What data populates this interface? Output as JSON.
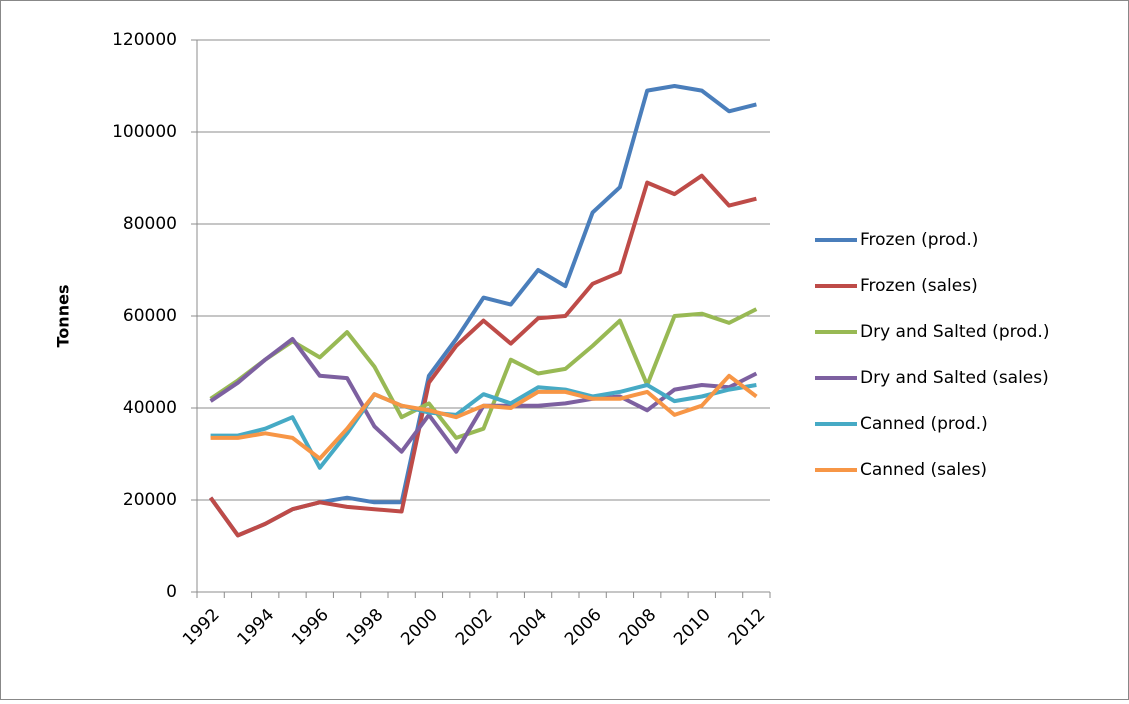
{
  "chart_data": {
    "type": "line",
    "y_label": "Tonnes",
    "categories": [
      "1992",
      null,
      "1994",
      null,
      "1996",
      null,
      "1998",
      null,
      "2000",
      null,
      "2002",
      null,
      "2004",
      null,
      "2006",
      null,
      "2008",
      null,
      "2010",
      null,
      "2012"
    ],
    "series": [
      {
        "name": "Frozen (prod.)",
        "color": "#4a7ebb",
        "values": [
          20500,
          12300,
          14800,
          18000,
          19500,
          20500,
          19500,
          19500,
          47000,
          55000,
          64000,
          62500,
          70000,
          66500,
          82500,
          88000,
          109000,
          110000,
          109000,
          104500,
          106000
        ]
      },
      {
        "name": "Frozen (sales)",
        "color": "#be4b48",
        "values": [
          20500,
          12300,
          14800,
          18000,
          19500,
          18500,
          18000,
          17500,
          45500,
          53500,
          59000,
          54000,
          59500,
          60000,
          67000,
          69500,
          89000,
          86500,
          90500,
          84000,
          85500
        ]
      },
      {
        "name": "Dry and Salted (prod.)",
        "color": "#98b954",
        "values": [
          42000,
          46000,
          50500,
          54500,
          51000,
          56500,
          49000,
          38000,
          41000,
          33500,
          35500,
          50500,
          47500,
          48500,
          53500,
          59000,
          45000,
          60000,
          60500,
          58500,
          61500
        ]
      },
      {
        "name": "Dry and Salted (sales)",
        "color": "#7d60a0",
        "values": [
          41500,
          45500,
          50500,
          55000,
          47000,
          46500,
          36000,
          30500,
          38500,
          30500,
          40500,
          40500,
          40500,
          41000,
          42000,
          42500,
          39500,
          44000,
          45000,
          44500,
          47500
        ]
      },
      {
        "name": "Canned (prod.)",
        "color": "#46aac5",
        "values": [
          34000,
          34000,
          35500,
          38000,
          27000,
          34500,
          43000,
          40500,
          39000,
          38500,
          43000,
          41000,
          44500,
          44000,
          42500,
          43500,
          45000,
          41500,
          42500,
          44000,
          45000
        ]
      },
      {
        "name": "Canned (sales)",
        "color": "#f79646",
        "values": [
          33500,
          33500,
          34500,
          33500,
          29000,
          35500,
          43000,
          40500,
          39500,
          38000,
          40500,
          40000,
          43500,
          43500,
          42000,
          42000,
          43500,
          38500,
          40500,
          47000,
          42500
        ]
      }
    ],
    "ylim": [
      0,
      120000
    ],
    "yticks": [
      0,
      20000,
      40000,
      60000,
      80000,
      100000,
      120000
    ],
    "grid": true,
    "legend": "right"
  }
}
